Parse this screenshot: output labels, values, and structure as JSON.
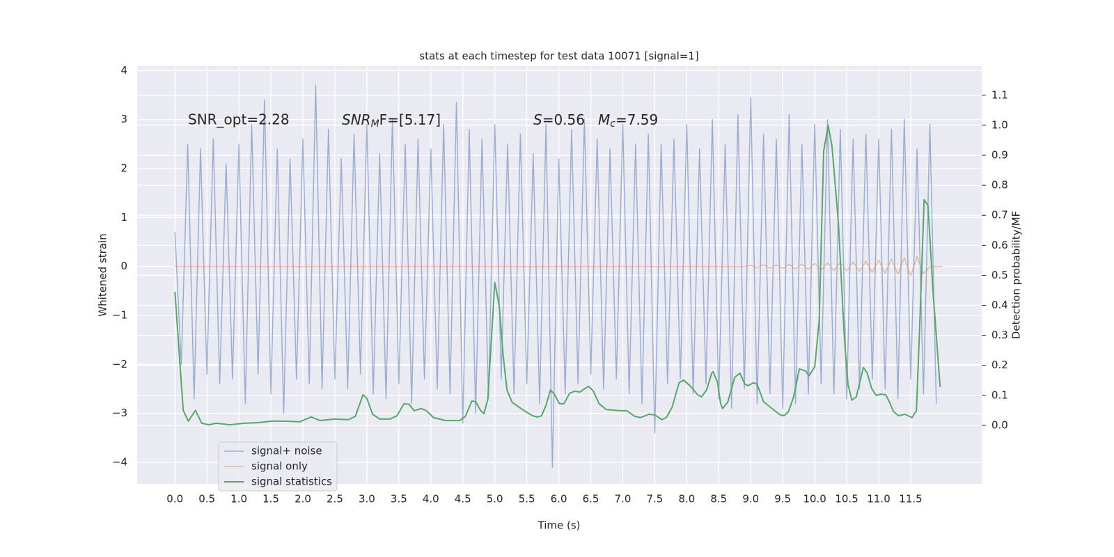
{
  "chart_data": {
    "type": "line",
    "title": "stats at each timestep for test data 10071 [signal=1]",
    "xlabel": "Time (s)",
    "ylabel": "Whitened strain",
    "y2label": "Detection probability/MF",
    "annotations": [
      {
        "main": "SNR_opt=2.28"
      },
      {
        "main": "SNR",
        "sub": "M",
        "rest": "F=[5.17]"
      },
      {
        "main": "S",
        "rest": "=0.56"
      },
      {
        "main": "M",
        "sub": "c",
        "rest": "=7.59"
      }
    ],
    "xlim": [
      -0.59,
      12.61
    ],
    "ylim": [
      -4.44,
      4.09
    ],
    "y2lim": [
      -0.195,
      1.197
    ],
    "xticks": [
      {
        "value": 0,
        "label": "0.0"
      },
      0.5,
      {
        "value": 1,
        "label": "1.0"
      },
      1.5,
      {
        "value": 2,
        "label": "2.0"
      },
      2.5,
      {
        "value": 3,
        "label": "3.0"
      },
      3.5,
      {
        "value": 4,
        "label": "4.0"
      },
      4.5,
      {
        "value": 5,
        "label": "5.0"
      },
      5.5,
      {
        "value": 6,
        "label": "6.0"
      },
      6.5,
      {
        "value": 7,
        "label": "7.0"
      },
      7.5,
      {
        "value": 8,
        "label": "8.0"
      },
      8.5,
      {
        "value": 9,
        "label": "9.0"
      },
      9.5,
      {
        "value": 10,
        "label": "10.0"
      },
      10.5,
      {
        "value": 11,
        "label": "11.0"
      },
      11.5
    ],
    "yticks": [
      {
        "value": -4,
        "label": "−4"
      },
      {
        "value": -3,
        "label": "−3"
      },
      {
        "value": -2,
        "label": "−2"
      },
      {
        "value": -1,
        "label": "−1"
      },
      0,
      1,
      2,
      3,
      4
    ],
    "y2ticks": [
      {
        "value": 0,
        "label": "0.0"
      },
      0.1,
      0.2,
      0.3,
      0.4,
      0.5,
      0.6,
      0.7,
      0.8,
      0.9,
      {
        "value": 1,
        "label": "1.0"
      },
      1.1
    ],
    "grid": true,
    "legend_loc": "lower left",
    "series": [
      {
        "name": "signal+ noise",
        "color": "#4c72b0",
        "x": [
          0,
          0.1,
          0.2,
          0.3,
          0.4,
          0.5,
          0.6,
          0.7,
          0.8,
          0.9,
          1,
          1.1,
          1.2,
          1.3,
          1.4,
          1.5,
          1.6,
          1.7,
          1.8,
          1.9,
          2,
          2.1,
          2.2,
          2.3,
          2.4,
          2.5,
          2.6,
          2.7,
          2.8,
          2.9,
          3,
          3.1,
          3.2,
          3.3,
          3.4,
          3.5,
          3.6,
          3.7,
          3.8,
          3.9,
          4,
          4.1,
          4.2,
          4.3,
          4.4,
          4.5,
          4.6,
          4.7,
          4.8,
          4.9,
          5,
          5.1,
          5.2,
          5.3,
          5.4,
          5.5,
          5.6,
          5.7,
          5.8,
          5.9,
          6,
          6.1,
          6.2,
          6.3,
          6.4,
          6.5,
          6.6,
          6.7,
          6.8,
          6.9,
          7,
          7.1,
          7.2,
          7.3,
          7.4,
          7.5,
          7.6,
          7.7,
          7.8,
          7.9,
          8,
          8.1,
          8.2,
          8.3,
          8.4,
          8.5,
          8.6,
          8.7,
          8.8,
          8.9,
          9,
          9.1,
          9.2,
          9.3,
          9.4,
          9.5,
          9.6,
          9.7,
          9.8,
          9.9,
          10,
          10.1,
          10.2,
          10.3,
          10.4,
          10.5,
          10.6,
          10.7,
          10.8,
          10.9,
          11,
          11.1,
          11.2,
          11.3,
          11.4,
          11.5,
          11.6,
          11.7,
          11.8,
          11.9
        ],
        "values": [
          0.7,
          -2.0,
          2.5,
          -2.7,
          2.4,
          -2.2,
          2.6,
          -2.4,
          2.1,
          -2.3,
          2.5,
          -2.8,
          2.9,
          -2.2,
          3.4,
          -2.6,
          2.4,
          -3.0,
          2.2,
          -2.3,
          2.6,
          -2.4,
          3.7,
          -2.5,
          2.8,
          -2.3,
          2.2,
          -2.5,
          2.7,
          -2.2,
          2.9,
          -2.6,
          2.3,
          -2.7,
          3.0,
          -2.4,
          2.5,
          -2.8,
          2.6,
          -2.3,
          2.4,
          -2.5,
          2.9,
          -2.6,
          3.35,
          -3.2,
          2.8,
          -3.0,
          2.6,
          -2.7,
          2.9,
          -2.3,
          2.5,
          -2.6,
          2.7,
          -2.4,
          2.3,
          -2.8,
          2.9,
          -4.1,
          2.2,
          -2.6,
          2.8,
          -2.4,
          3.0,
          -2.2,
          2.6,
          -2.5,
          2.4,
          -2.3,
          2.9,
          -2.6,
          2.5,
          -2.8,
          2.7,
          -3.4,
          2.5,
          -2.4,
          2.6,
          -2.3,
          2.9,
          -2.6,
          2.4,
          -2.4,
          3.0,
          -2.7,
          2.5,
          -2.9,
          3.1,
          -2.5,
          3.45,
          -2.8,
          2.7,
          -2.6,
          2.6,
          -2.9,
          3.1,
          -2.8,
          2.5,
          -2.6,
          2.9,
          -2.4,
          3.0,
          -2.6,
          2.8,
          -2.7,
          2.6,
          -2.5,
          2.7,
          -2.3,
          2.6,
          -2.5,
          2.8,
          -2.7,
          3.0,
          -2.3,
          2.4,
          -2.6,
          2.9,
          -2.8
        ]
      },
      {
        "name": "signal only",
        "color": "#dd8452",
        "x": [
          0,
          3,
          6,
          8.9,
          9,
          9.1,
          9.2,
          9.3,
          9.4,
          9.5,
          9.6,
          9.7,
          9.8,
          9.9,
          10,
          10.1,
          10.2,
          10.3,
          10.4,
          10.5,
          10.6,
          10.7,
          10.8,
          10.9,
          11,
          11.1,
          11.2,
          11.3,
          11.4,
          11.5,
          11.6,
          11.7,
          11.8,
          12
        ],
        "values": [
          0,
          0,
          0,
          0,
          0.02,
          -0.02,
          0.03,
          -0.03,
          0.03,
          -0.04,
          0.04,
          -0.05,
          0.05,
          -0.06,
          0.06,
          -0.07,
          0.07,
          -0.08,
          0.08,
          -0.09,
          0.09,
          -0.1,
          0.11,
          -0.12,
          0.13,
          -0.14,
          0.15,
          -0.16,
          0.18,
          -0.19,
          0.2,
          -0.15,
          0,
          0
        ]
      },
      {
        "name": "signal statistics",
        "color": "#55a868",
        "axis": "y2",
        "x": [
          0,
          0.13,
          0.21,
          0.32,
          0.42,
          0.53,
          0.64,
          0.86,
          1.08,
          1.29,
          1.51,
          1.73,
          1.95,
          2.13,
          2.27,
          2.49,
          2.71,
          2.82,
          2.94,
          3.0,
          3.09,
          3.2,
          3.36,
          3.47,
          3.58,
          3.66,
          3.74,
          3.85,
          3.93,
          4.04,
          4.23,
          4.45,
          4.54,
          4.64,
          4.7,
          4.78,
          4.83,
          4.89,
          5.0,
          5.07,
          5.13,
          5.19,
          5.27,
          5.43,
          5.59,
          5.67,
          5.73,
          5.8,
          5.87,
          5.93,
          6.01,
          6.08,
          6.17,
          6.25,
          6.33,
          6.41,
          6.47,
          6.54,
          6.63,
          6.74,
          6.95,
          7.06,
          7.19,
          7.28,
          7.41,
          7.5,
          7.61,
          7.68,
          7.77,
          7.88,
          7.95,
          8.06,
          8.17,
          8.23,
          8.31,
          8.39,
          8.41,
          8.48,
          8.53,
          8.56,
          8.64,
          8.75,
          8.83,
          8.91,
          8.96,
          9.04,
          9.1,
          9.2,
          9.35,
          9.46,
          9.52,
          9.59,
          9.67,
          9.76,
          9.86,
          9.91,
          10.0,
          10.07,
          10.14,
          10.21,
          10.27,
          10.37,
          10.46,
          10.52,
          10.58,
          10.65,
          10.76,
          10.82,
          10.89,
          10.96,
          11.03,
          11.11,
          11.17,
          11.23,
          11.31,
          11.41,
          11.52,
          11.59,
          11.64,
          11.71,
          11.77,
          11.85,
          11.96
        ],
        "values": [
          0.445,
          0.05,
          0.014,
          0.05,
          0.007,
          0.002,
          0.007,
          0.002,
          0.007,
          0.009,
          0.014,
          0.014,
          0.012,
          0.028,
          0.016,
          0.021,
          0.019,
          0.03,
          0.102,
          0.09,
          0.037,
          0.021,
          0.021,
          0.032,
          0.072,
          0.07,
          0.049,
          0.056,
          0.049,
          0.026,
          0.016,
          0.016,
          0.03,
          0.081,
          0.079,
          0.049,
          0.039,
          0.086,
          0.476,
          0.397,
          0.234,
          0.118,
          0.077,
          0.053,
          0.032,
          0.028,
          0.032,
          0.067,
          0.118,
          0.104,
          0.072,
          0.072,
          0.107,
          0.114,
          0.111,
          0.123,
          0.13,
          0.114,
          0.072,
          0.053,
          0.049,
          0.049,
          0.03,
          0.026,
          0.037,
          0.035,
          0.019,
          0.026,
          0.06,
          0.142,
          0.151,
          0.13,
          0.102,
          0.095,
          0.118,
          0.174,
          0.179,
          0.144,
          0.072,
          0.056,
          0.077,
          0.16,
          0.174,
          0.137,
          0.132,
          0.142,
          0.137,
          0.079,
          0.053,
          0.035,
          0.032,
          0.046,
          0.095,
          0.188,
          0.181,
          0.165,
          0.195,
          0.35,
          0.914,
          1.0,
          0.93,
          0.675,
          0.304,
          0.137,
          0.084,
          0.095,
          0.193,
          0.174,
          0.123,
          0.1,
          0.104,
          0.102,
          0.077,
          0.046,
          0.032,
          0.037,
          0.026,
          0.049,
          0.327,
          0.752,
          0.733,
          0.443,
          0.128
        ]
      }
    ]
  }
}
